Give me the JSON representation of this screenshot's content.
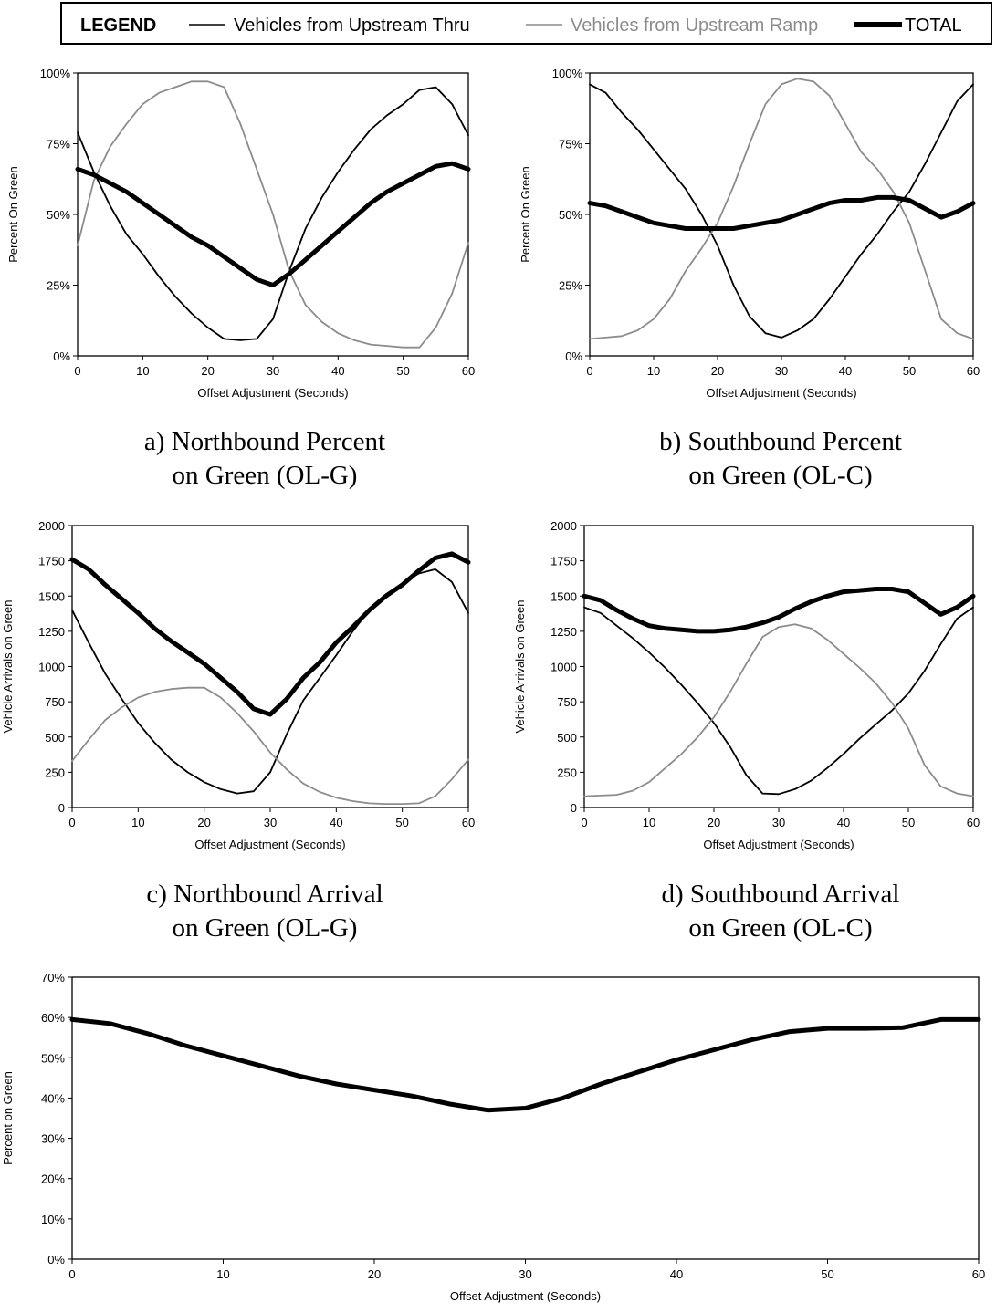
{
  "legend": {
    "title": "LEGEND",
    "items": [
      {
        "label": "Vehicles from Upstream Thru",
        "color": "#000000"
      },
      {
        "label": "Vehicles from Upstream Ramp",
        "color": "#8c8c8c"
      },
      {
        "label": "TOTAL",
        "color": "#000000"
      }
    ]
  },
  "captions": [
    {
      "line1": "a) Northbound Percent",
      "line2": "on Green (OL-G)"
    },
    {
      "line1": "b) Southbound Percent",
      "line2": "on Green (OL-C)"
    },
    {
      "line1": "c) Northbound Arrival",
      "line2": "on Green (OL-G)"
    },
    {
      "line1": "d) Southbound Arrival",
      "line2": "on Green (OL-C)"
    }
  ],
  "chart_data": [
    {
      "type": "line",
      "xlabel": "Offset Adjustment (Seconds)",
      "ylabel": "Percent On Green",
      "xlim": [
        0,
        60
      ],
      "ylim": [
        0,
        100
      ],
      "xticks": [
        "0",
        "10",
        "20",
        "30",
        "40",
        "50",
        "60"
      ],
      "yticks": [
        "0%",
        "25%",
        "50%",
        "75%",
        "100%"
      ],
      "x": [
        0,
        2.5,
        5,
        7.5,
        10,
        12.5,
        15,
        17.5,
        20,
        22.5,
        25,
        27.5,
        30,
        32.5,
        35,
        37.5,
        40,
        42.5,
        45,
        47.5,
        50,
        52.5,
        55,
        57.5,
        60
      ],
      "series": [
        {
          "name": "Vehicles from Upstream Thru",
          "color": "#000000",
          "values": [
            79,
            65,
            53,
            43,
            36,
            28,
            21,
            15,
            10,
            6,
            5.5,
            6,
            13,
            30,
            45,
            56,
            65,
            73,
            80,
            85,
            89,
            94,
            95,
            89,
            78
          ]
        },
        {
          "name": "Vehicles from Upstream Ramp",
          "color": "#8c8c8c",
          "values": [
            39,
            62,
            74,
            82,
            89,
            93,
            95,
            97,
            97,
            95,
            82,
            66,
            50,
            30,
            18,
            12,
            8,
            5.5,
            4,
            3.5,
            3,
            3,
            10,
            22,
            40
          ]
        },
        {
          "name": "TOTAL",
          "color": "#000000",
          "values": [
            66,
            64,
            61,
            58,
            54,
            50,
            46,
            42,
            39,
            35,
            31,
            27,
            25,
            29,
            34,
            39,
            44,
            49,
            54,
            58,
            61,
            64,
            67,
            68,
            66
          ]
        }
      ]
    },
    {
      "type": "line",
      "xlabel": "Offset Adjustment (Seconds)",
      "ylabel": "Percent On Green",
      "xlim": [
        0,
        60
      ],
      "ylim": [
        0,
        100
      ],
      "xticks": [
        "0",
        "10",
        "20",
        "30",
        "40",
        "50",
        "60"
      ],
      "yticks": [
        "0%",
        "25%",
        "50%",
        "75%",
        "100%"
      ],
      "x": [
        0,
        2.5,
        5,
        7.5,
        10,
        12.5,
        15,
        17.5,
        20,
        22.5,
        25,
        27.5,
        30,
        32.5,
        35,
        37.5,
        40,
        42.5,
        45,
        47.5,
        50,
        52.5,
        55,
        57.5,
        60
      ],
      "series": [
        {
          "name": "Vehicles from Upstream Thru",
          "color": "#000000",
          "values": [
            96,
            93,
            86,
            80,
            73,
            66,
            59,
            50,
            39,
            25,
            14,
            8,
            6.5,
            9,
            13,
            20,
            28,
            36,
            43,
            51,
            58,
            68,
            79,
            90,
            96
          ]
        },
        {
          "name": "Vehicles from Upstream Ramp",
          "color": "#8c8c8c",
          "values": [
            6,
            6.5,
            7,
            9,
            13,
            20,
            30,
            38,
            47,
            60,
            75,
            89,
            96,
            98,
            97,
            92,
            82,
            72,
            66,
            58,
            47,
            30,
            13,
            8,
            6
          ]
        },
        {
          "name": "TOTAL",
          "color": "#000000",
          "values": [
            54,
            53,
            51,
            49,
            47,
            46,
            45,
            45,
            45,
            45,
            46,
            47,
            48,
            50,
            52,
            54,
            55,
            55,
            56,
            56,
            55,
            52,
            49,
            51,
            54
          ]
        }
      ]
    },
    {
      "type": "line",
      "xlabel": "Offset Adjustment (Seconds)",
      "ylabel": "Vehicle Arrivals on Green",
      "xlim": [
        0,
        60
      ],
      "ylim": [
        0,
        2000
      ],
      "xticks": [
        "0",
        "10",
        "20",
        "30",
        "40",
        "50",
        "60"
      ],
      "yticks": [
        "0",
        "250",
        "500",
        "750",
        "1000",
        "1250",
        "1500",
        "1750",
        "2000"
      ],
      "x": [
        0,
        2.5,
        5,
        7.5,
        10,
        12.5,
        15,
        17.5,
        20,
        22.5,
        25,
        27.5,
        30,
        32.5,
        35,
        37.5,
        40,
        42.5,
        45,
        47.5,
        50,
        52.5,
        55,
        57.5,
        60
      ],
      "series": [
        {
          "name": "Vehicles from Upstream Thru",
          "color": "#000000",
          "values": [
            1400,
            1170,
            950,
            770,
            600,
            460,
            340,
            250,
            180,
            130,
            100,
            115,
            250,
            520,
            760,
            920,
            1080,
            1250,
            1400,
            1510,
            1590,
            1660,
            1690,
            1600,
            1380
          ]
        },
        {
          "name": "Vehicles from Upstream Ramp",
          "color": "#8c8c8c",
          "values": [
            330,
            480,
            620,
            710,
            780,
            820,
            840,
            850,
            850,
            780,
            670,
            540,
            390,
            270,
            170,
            110,
            70,
            45,
            30,
            25,
            25,
            30,
            80,
            200,
            340
          ]
        },
        {
          "name": "TOTAL",
          "color": "#000000",
          "values": [
            1760,
            1690,
            1580,
            1480,
            1380,
            1270,
            1180,
            1100,
            1020,
            920,
            820,
            700,
            660,
            770,
            920,
            1030,
            1170,
            1280,
            1400,
            1500,
            1580,
            1680,
            1770,
            1800,
            1740
          ]
        }
      ]
    },
    {
      "type": "line",
      "xlabel": "Offset Adjustment (Seconds)",
      "ylabel": "Vehicle Arrivals on Green",
      "xlim": [
        0,
        60
      ],
      "ylim": [
        0,
        2000
      ],
      "xticks": [
        "0",
        "10",
        "20",
        "30",
        "40",
        "50",
        "60"
      ],
      "yticks": [
        "0",
        "250",
        "500",
        "750",
        "1000",
        "1250",
        "1500",
        "1750",
        "2000"
      ],
      "x": [
        0,
        2.5,
        5,
        7.5,
        10,
        12.5,
        15,
        17.5,
        20,
        22.5,
        25,
        27.5,
        30,
        32.5,
        35,
        37.5,
        40,
        42.5,
        45,
        47.5,
        50,
        52.5,
        55,
        57.5,
        60
      ],
      "series": [
        {
          "name": "Vehicles from Upstream Thru",
          "color": "#000000",
          "values": [
            1420,
            1380,
            1290,
            1200,
            1100,
            990,
            870,
            740,
            600,
            430,
            230,
            100,
            95,
            130,
            190,
            280,
            380,
            490,
            590,
            690,
            810,
            970,
            1160,
            1340,
            1420
          ]
        },
        {
          "name": "Vehicles from Upstream Ramp",
          "color": "#8c8c8c",
          "values": [
            80,
            85,
            90,
            120,
            180,
            280,
            380,
            500,
            640,
            820,
            1020,
            1210,
            1280,
            1300,
            1270,
            1190,
            1090,
            990,
            880,
            740,
            560,
            300,
            150,
            100,
            80
          ]
        },
        {
          "name": "TOTAL",
          "color": "#000000",
          "values": [
            1500,
            1470,
            1400,
            1340,
            1290,
            1270,
            1260,
            1250,
            1250,
            1260,
            1280,
            1310,
            1350,
            1410,
            1460,
            1500,
            1530,
            1540,
            1550,
            1550,
            1530,
            1450,
            1370,
            1420,
            1500
          ]
        }
      ]
    },
    {
      "type": "line",
      "xlabel": "Offset Adjustment (Seconds)",
      "ylabel": "Percent on Green",
      "xlim": [
        0,
        60
      ],
      "ylim": [
        0,
        70
      ],
      "xticks": [
        "0",
        "10",
        "20",
        "30",
        "40",
        "50",
        "60"
      ],
      "yticks": [
        "0%",
        "10%",
        "20%",
        "30%",
        "40%",
        "50%",
        "60%",
        "70%"
      ],
      "x": [
        0,
        2.5,
        5,
        7.5,
        10,
        12.5,
        15,
        17.5,
        20,
        22.5,
        25,
        27.5,
        30,
        32.5,
        35,
        37.5,
        40,
        42.5,
        45,
        47.5,
        50,
        52.5,
        55,
        57.5,
        60
      ],
      "series": [
        {
          "name": "TOTAL",
          "color": "#000000",
          "values": [
            59.5,
            58.5,
            56,
            53,
            50.5,
            48,
            45.5,
            43.5,
            42,
            40.5,
            38.5,
            37,
            37.5,
            40,
            43.5,
            46.5,
            49.5,
            52,
            54.5,
            56.5,
            57.3,
            57.3,
            57.5,
            59.5,
            59.5
          ]
        }
      ]
    }
  ]
}
